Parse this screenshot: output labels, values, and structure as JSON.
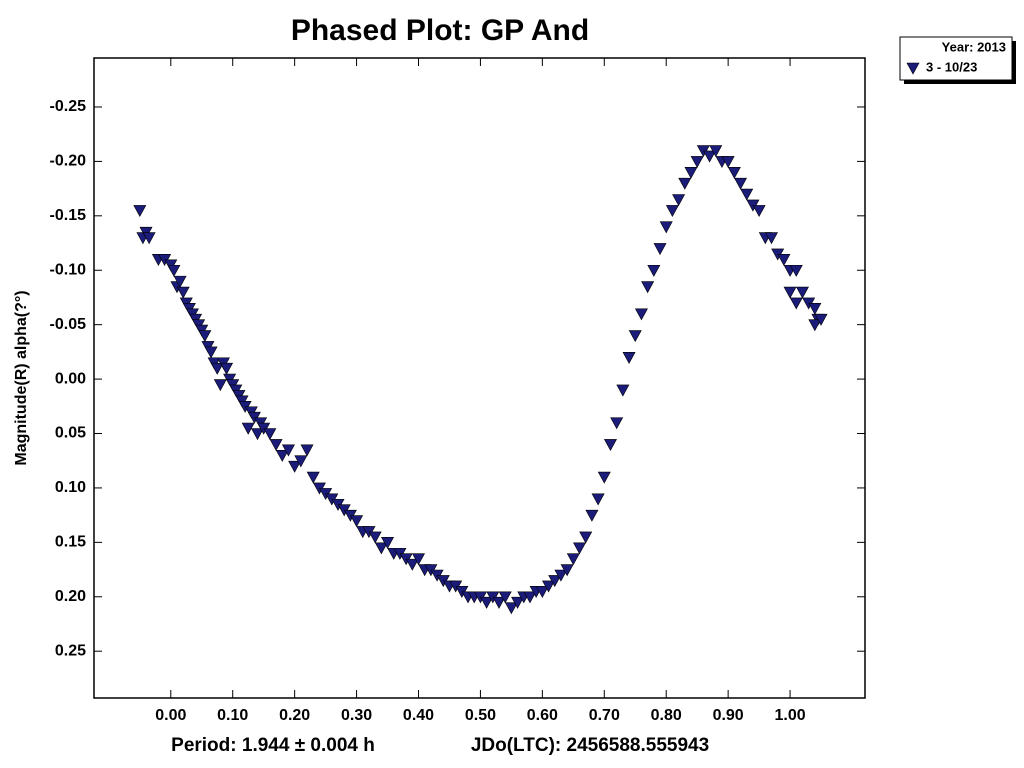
{
  "chart_data": {
    "type": "scatter",
    "title": "Phased Plot: GP And",
    "ylabel": "Magnitude(R) alpha(?°)",
    "footer_left": "Period: 1.944 ± 0.004 h",
    "footer_right": "JDo(LTC): 2456588.555943",
    "legend_title": "Year: 2013",
    "legend_position": "upper right outside",
    "xlim": [
      -0.124,
      1.121
    ],
    "ylim": [
      0.293,
      -0.295
    ],
    "xticks": [
      {
        "value": 0,
        "label": "0.00"
      },
      {
        "value": 0.1,
        "label": "0.10"
      },
      {
        "value": 0.2,
        "label": "0.20"
      },
      {
        "value": 0.3,
        "label": "0.30"
      },
      {
        "value": 0.4,
        "label": "0.40"
      },
      {
        "value": 0.5,
        "label": "0.50"
      },
      {
        "value": 0.6,
        "label": "0.60"
      },
      {
        "value": 0.7,
        "label": "0.70"
      },
      {
        "value": 0.8,
        "label": "0.80"
      },
      {
        "value": 0.9,
        "label": "0.90"
      },
      {
        "value": 1,
        "label": "1.00"
      }
    ],
    "yticks": [
      -0.25,
      {
        "value": -0.2,
        "label": "-0.20"
      },
      -0.15,
      {
        "value": -0.1,
        "label": "-0.10"
      },
      -0.05,
      {
        "value": 0,
        "label": "0.00"
      },
      0.05,
      {
        "value": 0.1,
        "label": "0.10"
      },
      0.15,
      {
        "value": 0.2,
        "label": "0.20"
      },
      0.25
    ],
    "series": [
      {
        "name": "3 - 10/23",
        "color": "#1b1b7a",
        "x": [
          -0.05,
          -0.045,
          -0.04,
          -0.035,
          -0.02,
          -0.01,
          0.0,
          0.005,
          0.01,
          0.015,
          0.02,
          0.025,
          0.03,
          0.035,
          0.04,
          0.045,
          0.05,
          0.055,
          0.06,
          0.065,
          0.07,
          0.075,
          0.08,
          0.085,
          0.09,
          0.095,
          0.1,
          0.105,
          0.11,
          0.115,
          0.12,
          0.125,
          0.13,
          0.135,
          0.14,
          0.145,
          0.15,
          0.16,
          0.17,
          0.18,
          0.19,
          0.2,
          0.21,
          0.22,
          0.23,
          0.24,
          0.25,
          0.26,
          0.27,
          0.28,
          0.29,
          0.3,
          0.31,
          0.32,
          0.33,
          0.34,
          0.35,
          0.36,
          0.37,
          0.38,
          0.39,
          0.4,
          0.41,
          0.42,
          0.43,
          0.44,
          0.45,
          0.46,
          0.47,
          0.48,
          0.49,
          0.5,
          0.51,
          0.52,
          0.53,
          0.54,
          0.55,
          0.56,
          0.57,
          0.58,
          0.59,
          0.6,
          0.61,
          0.62,
          0.63,
          0.64,
          0.65,
          0.66,
          0.67,
          0.68,
          0.69,
          0.7,
          0.71,
          0.72,
          0.73,
          0.74,
          0.75,
          0.76,
          0.77,
          0.78,
          0.79,
          0.8,
          0.81,
          0.82,
          0.83,
          0.84,
          0.85,
          0.86,
          0.87,
          0.88,
          0.89,
          0.9,
          0.91,
          0.92,
          0.93,
          0.94,
          0.95,
          0.96,
          0.97,
          0.98,
          0.99,
          1.0,
          1.01,
          1.0,
          1.02,
          1.03,
          1.04,
          1.045,
          1.04,
          1.05,
          1.01
        ],
        "values": [
          -0.155,
          -0.13,
          -0.135,
          -0.13,
          -0.11,
          -0.11,
          -0.105,
          -0.1,
          -0.085,
          -0.09,
          -0.08,
          -0.07,
          -0.065,
          -0.06,
          -0.055,
          -0.05,
          -0.045,
          -0.04,
          -0.03,
          -0.025,
          -0.015,
          -0.01,
          0.005,
          -0.015,
          -0.01,
          0.0,
          0.005,
          0.01,
          0.015,
          0.02,
          0.025,
          0.045,
          0.03,
          0.035,
          0.05,
          0.04,
          0.045,
          0.05,
          0.06,
          0.07,
          0.065,
          0.08,
          0.075,
          0.065,
          0.09,
          0.1,
          0.105,
          0.11,
          0.115,
          0.12,
          0.125,
          0.13,
          0.14,
          0.14,
          0.145,
          0.155,
          0.15,
          0.16,
          0.16,
          0.165,
          0.17,
          0.165,
          0.175,
          0.175,
          0.18,
          0.185,
          0.19,
          0.19,
          0.195,
          0.2,
          0.2,
          0.2,
          0.205,
          0.2,
          0.205,
          0.2,
          0.21,
          0.205,
          0.2,
          0.2,
          0.195,
          0.195,
          0.19,
          0.185,
          0.18,
          0.175,
          0.165,
          0.155,
          0.145,
          0.125,
          0.11,
          0.09,
          0.06,
          0.04,
          0.01,
          -0.02,
          -0.04,
          -0.06,
          -0.085,
          -0.1,
          -0.12,
          -0.14,
          -0.155,
          -0.165,
          -0.18,
          -0.19,
          -0.2,
          -0.21,
          -0.205,
          -0.21,
          -0.2,
          -0.2,
          -0.19,
          -0.18,
          -0.17,
          -0.16,
          -0.155,
          -0.13,
          -0.13,
          -0.115,
          -0.11,
          -0.1,
          -0.1,
          -0.08,
          -0.08,
          -0.07,
          -0.065,
          -0.055,
          -0.05,
          -0.055,
          -0.07
        ]
      }
    ]
  }
}
